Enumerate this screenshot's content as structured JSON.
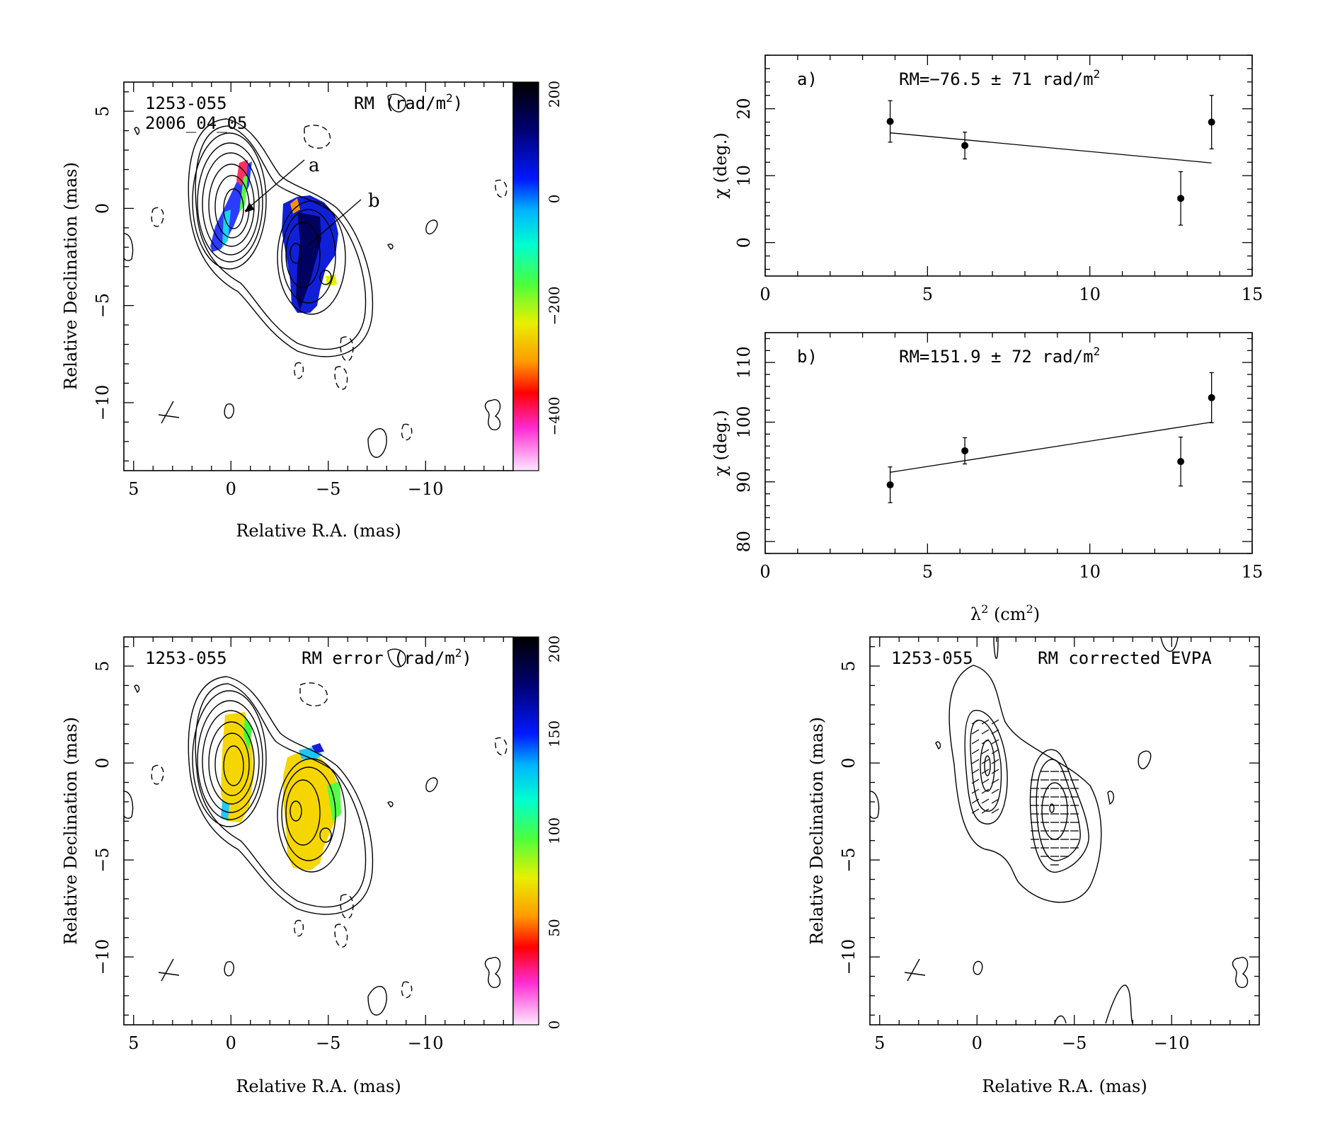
{
  "panels": {
    "rm_map": {
      "source": "1253-055",
      "date": "2006_04_05",
      "quantity_label": "RM (rad/m",
      "quantity_sup": "2",
      "quantity_close": ")",
      "marker_a": "a",
      "marker_b": "b",
      "colorbar_ticks": [
        "200",
        "0",
        "−200",
        "−400"
      ],
      "xlabel": "Relative R.A. (mas)",
      "ylabel": "Relative Declination (mas)"
    },
    "rm_error_map": {
      "source": "1253-055",
      "quantity_label": "RM error (rad/m",
      "quantity_sup": "2",
      "quantity_close": ")",
      "colorbar_ticks": [
        "200",
        "150",
        "100",
        "50",
        "0"
      ],
      "xlabel": "Relative R.A. (mas)",
      "ylabel": "Relative Declination (mas)"
    },
    "evpa_map": {
      "source": "1253-055",
      "quantity_label": "RM corrected EVPA",
      "xlabel": "Relative R.A. (mas)",
      "ylabel": "Relative Declination (mas)"
    },
    "fit_a": {
      "letter": "a)",
      "rm_text": "RM=−76.5 ± 71 rad/m",
      "rm_sup": "2",
      "ylabel": "χ (deg.)"
    },
    "fit_b": {
      "letter": "b)",
      "rm_text": "RM=151.9 ± 72 rad/m",
      "rm_sup": "2",
      "ylabel": "χ (deg.)"
    },
    "fit_xlabel_main": "λ",
    "fit_xlabel_sup": "2",
    "fit_xlabel_unit": " (cm",
    "fit_xlabel_unit_sup": "2",
    "fit_xlabel_close": ")"
  },
  "chart_data": [
    {
      "type": "scatter",
      "id": "fit_a",
      "xlabel": "λ² (cm²)",
      "ylabel": "χ (deg.)",
      "xlim": [
        0,
        15
      ],
      "ylim": [
        -5,
        28
      ],
      "xticks": [
        0,
        5,
        10,
        15
      ],
      "yticks": [
        0,
        10,
        20
      ],
      "x": [
        3.85,
        6.15,
        12.8,
        13.75
      ],
      "y": [
        18.1,
        14.5,
        6.6,
        18.0
      ],
      "yerr": [
        3.1,
        2.0,
        4.0,
        4.0
      ],
      "fit_line": {
        "x": [
          3.85,
          13.75
        ],
        "y": [
          16.4,
          11.9
        ]
      }
    },
    {
      "type": "scatter",
      "id": "fit_b",
      "xlabel": "λ² (cm²)",
      "ylabel": "χ (deg.)",
      "xlim": [
        0,
        15
      ],
      "ylim": [
        78,
        115
      ],
      "xticks": [
        0,
        5,
        10,
        15
      ],
      "yticks": [
        80,
        90,
        100,
        110
      ],
      "x": [
        3.85,
        6.15,
        12.8,
        13.75
      ],
      "y": [
        89.5,
        95.2,
        93.4,
        104.1
      ],
      "yerr": [
        3.0,
        2.2,
        4.1,
        4.2
      ],
      "fit_line": {
        "x": [
          3.85,
          13.75
        ],
        "y": [
          91.6,
          100.0
        ]
      }
    },
    {
      "type": "heatmap",
      "id": "rm_map",
      "xlim": [
        5.5,
        -14.5
      ],
      "ylim": [
        -13.5,
        6.5
      ],
      "xticks": [
        5,
        0,
        -5,
        -10
      ],
      "yticks": [
        5,
        0,
        -5,
        -10
      ],
      "colorbar_range": [
        -500,
        200
      ],
      "colorbar_ticks": [
        200,
        0,
        -200,
        -400
      ]
    },
    {
      "type": "heatmap",
      "id": "rm_error_map",
      "xlim": [
        5.5,
        -14.5
      ],
      "ylim": [
        -13.5,
        6.5
      ],
      "xticks": [
        5,
        0,
        -5,
        -10
      ],
      "yticks": [
        5,
        0,
        -5,
        -10
      ],
      "colorbar_range": [
        0,
        200
      ],
      "colorbar_ticks": [
        200,
        150,
        100,
        50,
        0
      ]
    },
    {
      "type": "heatmap",
      "id": "evpa_map",
      "xlim": [
        5.5,
        -14.5
      ],
      "ylim": [
        -13.5,
        6.5
      ],
      "xticks": [
        5,
        0,
        -5,
        -10
      ],
      "yticks": [
        5,
        0,
        -5,
        -10
      ]
    }
  ]
}
